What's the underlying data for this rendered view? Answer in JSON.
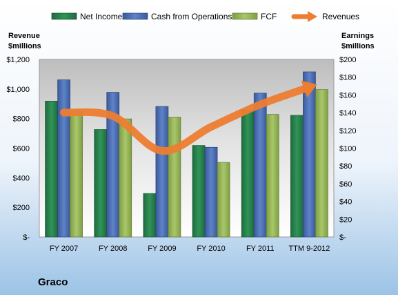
{
  "chart_data": {
    "type": "bar",
    "company": "Graco",
    "categories": [
      "FY 2007",
      "FY 2008",
      "FY 2009",
      "FY 2010",
      "FY 2011",
      "TTM 9-2012"
    ],
    "left_axis": {
      "title_lines": [
        "Revenue",
        "$millions"
      ],
      "ylim": [
        0,
        1200
      ],
      "ticks": [
        0,
        200,
        400,
        600,
        800,
        1000,
        1200
      ],
      "tick_labels": [
        "$-",
        "$200",
        "$400",
        "$600",
        "$800",
        "$1,000",
        "$1,200"
      ]
    },
    "right_axis": {
      "title_lines": [
        "Earnings",
        "$millions"
      ],
      "ylim": [
        0,
        200
      ],
      "ticks": [
        0,
        20,
        40,
        60,
        80,
        100,
        120,
        140,
        160,
        180,
        200
      ],
      "tick_labels": [
        "$-",
        "$20",
        "$40",
        "$60",
        "$80",
        "$100",
        "$120",
        "$140",
        "$160",
        "$180",
        "$200"
      ]
    },
    "series": [
      {
        "name": "Net Income",
        "type": "bar",
        "axis": "right",
        "color": "#2e8b57",
        "values": [
          153,
          121,
          49,
          103,
          143,
          137
        ]
      },
      {
        "name": "Cash from Operations",
        "type": "bar",
        "axis": "right",
        "color": "#4f72b8",
        "values": [
          177,
          163,
          147,
          101,
          162,
          186
        ]
      },
      {
        "name": "FCF",
        "type": "bar",
        "axis": "right",
        "color": "#9bbb59",
        "values": [
          141,
          133,
          135,
          84,
          138,
          166
        ]
      },
      {
        "name": "Revenues",
        "type": "line",
        "axis": "left",
        "color": "#ed7d31",
        "values": [
          841,
          817,
          582,
          744,
          895,
          1012
        ]
      }
    ],
    "grid": false,
    "legend_position": "top"
  }
}
